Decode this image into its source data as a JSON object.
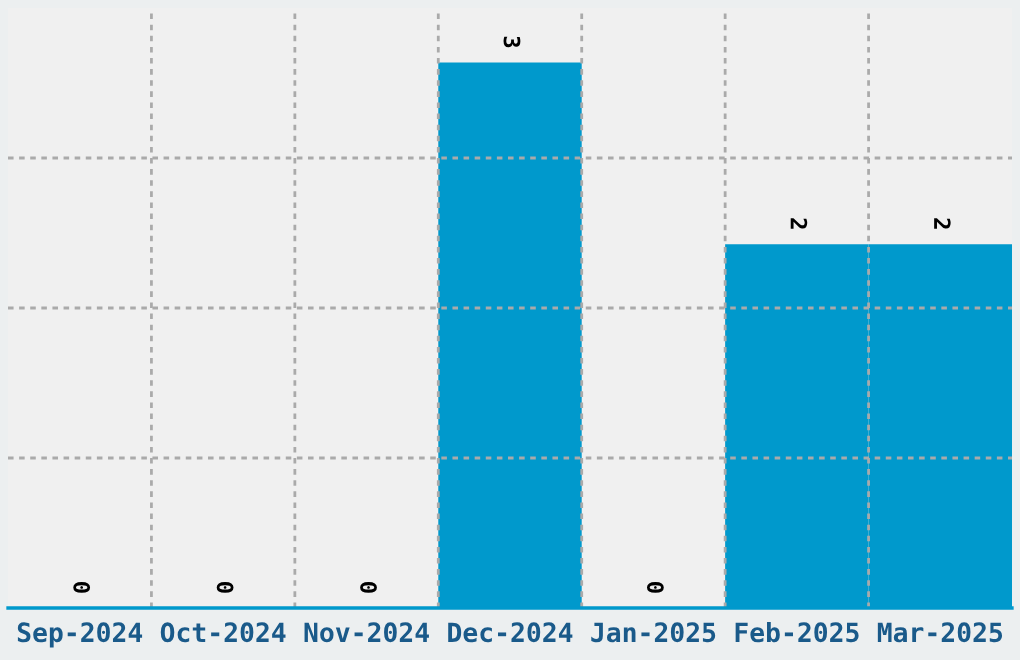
{
  "chart_data": {
    "type": "bar",
    "categories": [
      "Sep-2024",
      "Oct-2024",
      "Nov-2024",
      "Dec-2024",
      "Jan-2025",
      "Feb-2025",
      "Mar-2025"
    ],
    "values": [
      0,
      0,
      0,
      3,
      0,
      2,
      2
    ],
    "color": "#0099cc",
    "data_labels": true,
    "ylim": [
      0,
      3.3
    ],
    "yticks": [
      {
        "value": 0.825,
        "label": null
      },
      {
        "value": 1.65,
        "label": null
      },
      {
        "value": 2.475,
        "label": null
      }
    ],
    "tick_labels": "x",
    "grid": true,
    "legend": false
  }
}
